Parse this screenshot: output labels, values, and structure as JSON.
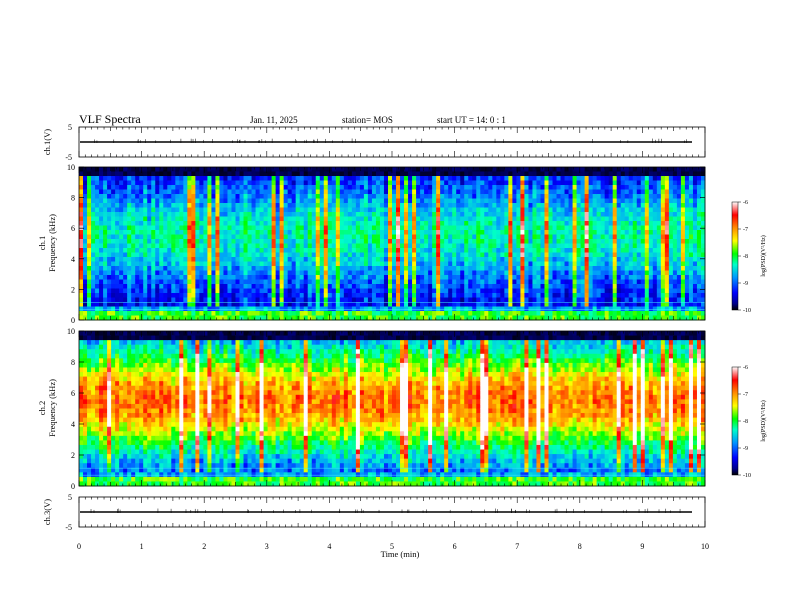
{
  "header": {
    "title": "VLF Spectra",
    "date": "Jan. 11, 2025",
    "station": "station= MOS",
    "start": "start  UT =  14: 0  : 1"
  },
  "chart_data": [
    {
      "type": "line",
      "name": "ch1-waveform",
      "ylabel": "ch.1(V)",
      "ylim": [
        -5,
        5
      ],
      "yticks": [
        "5",
        "-5"
      ],
      "xlim": [
        0,
        10
      ],
      "baseline": -0.8,
      "description_color": "#000000"
    },
    {
      "type": "heatmap",
      "name": "ch1-spectrogram",
      "ylabel_top": "ch.1",
      "ylabel": "Frequency (kHz)",
      "ylim": [
        0,
        10
      ],
      "yticks": [
        "0",
        "2",
        "4",
        "6",
        "8",
        "10"
      ],
      "xlim": [
        0,
        10
      ],
      "colorbar": {
        "label": "log(PSD)(V²/Hz)",
        "min": -10,
        "max": -6,
        "ticks": [
          "-6",
          "-7",
          "-8",
          "-9",
          "-10"
        ]
      }
    },
    {
      "type": "heatmap",
      "name": "ch2-spectrogram",
      "ylabel_top": "ch.2",
      "ylabel": "Frequency (kHz)",
      "ylim": [
        0,
        10
      ],
      "yticks": [
        "0",
        "2",
        "4",
        "6",
        "8",
        "10"
      ],
      "xlim": [
        0,
        10
      ],
      "colorbar": {
        "label": "log(PSD)(V²/Hz)",
        "min": -10,
        "max": -6,
        "ticks": [
          "-6",
          "-7",
          "-8",
          "-9",
          "-10"
        ]
      }
    },
    {
      "type": "line",
      "name": "ch3-waveform",
      "ylabel": "ch.3(V)",
      "ylim": [
        -5,
        5
      ],
      "yticks": [
        "5",
        "-5"
      ],
      "xlim": [
        0,
        10
      ],
      "baseline": 0,
      "xlabel": "Time  (min)",
      "xticks": [
        "0",
        "1",
        "2",
        "3",
        "4",
        "5",
        "6",
        "7",
        "8",
        "9",
        "10"
      ]
    }
  ],
  "colors": {
    "colormap": [
      "#000000",
      "#00008c",
      "#0000ff",
      "#0096ff",
      "#00ffc8",
      "#00ff00",
      "#ffff00",
      "#ff8c00",
      "#ff0000",
      "#ffffff"
    ]
  }
}
